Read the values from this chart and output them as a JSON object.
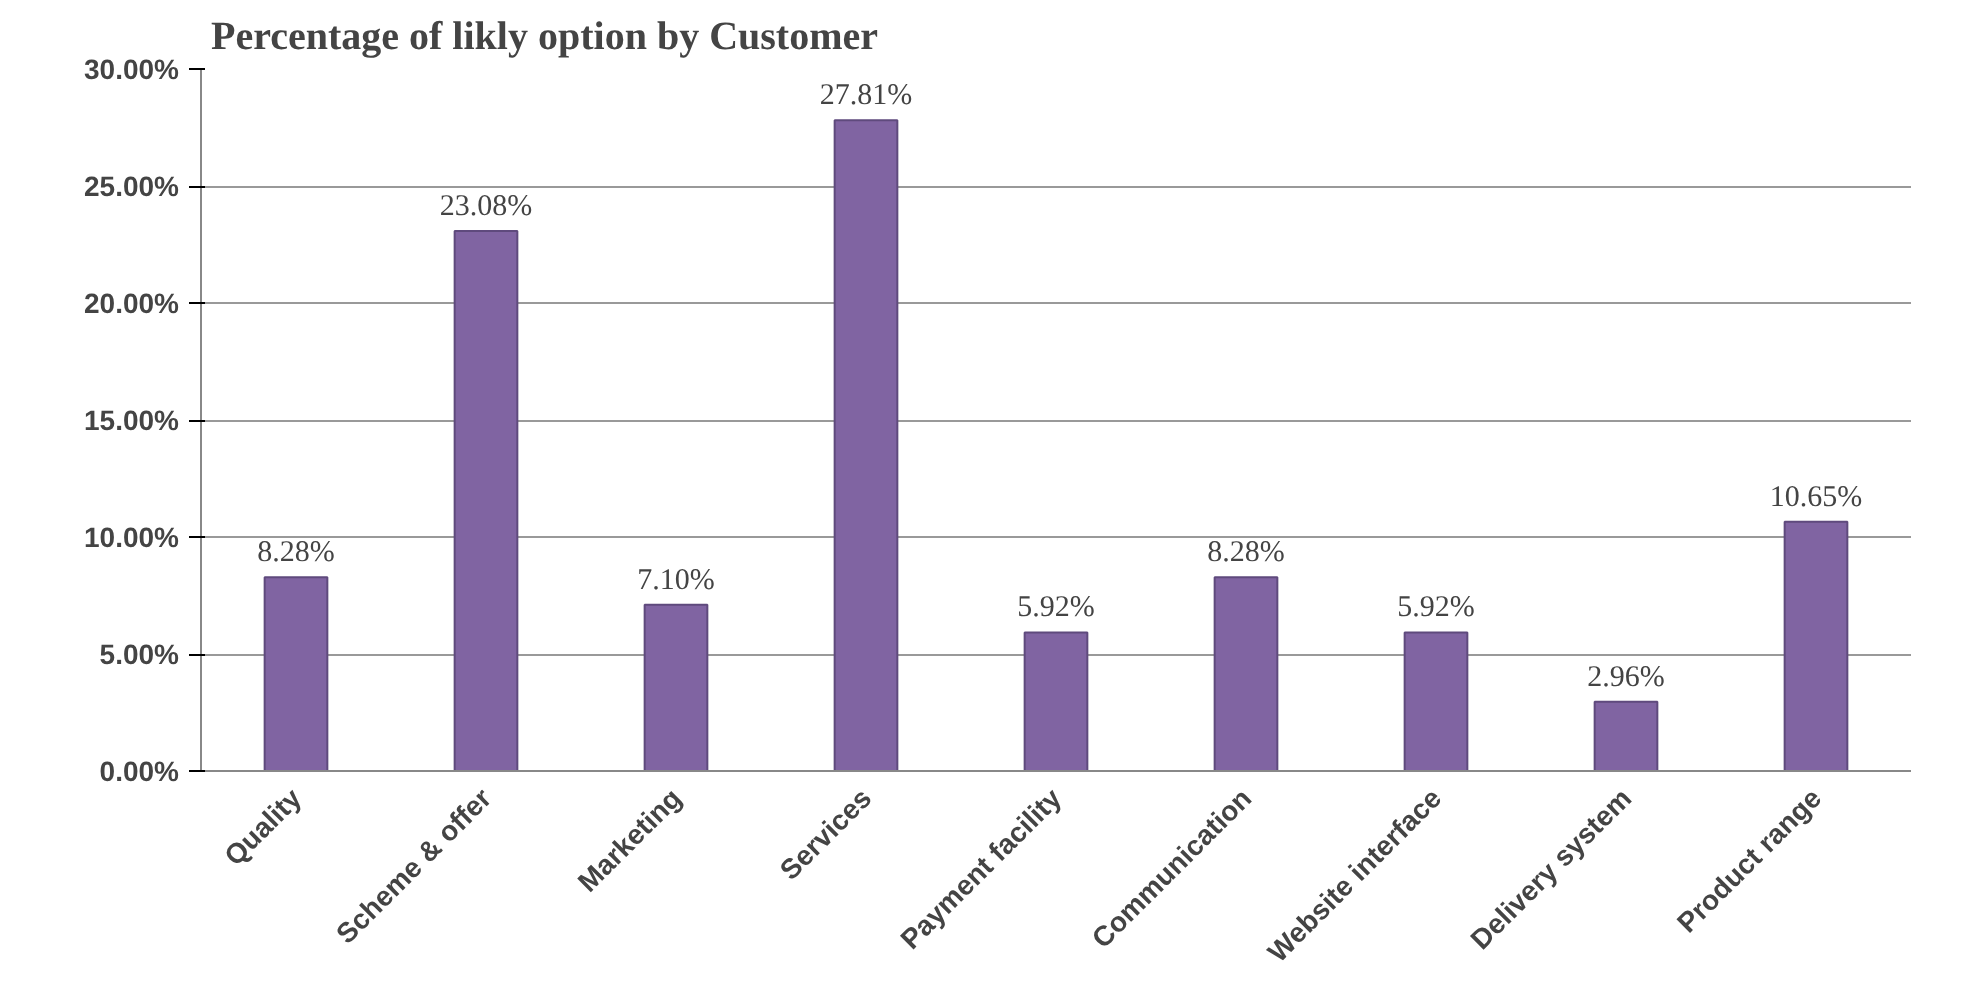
{
  "chart_data": {
    "type": "bar",
    "title": "Percentage of likly option by Customer",
    "categories": [
      "Quality",
      "Scheme & offer",
      "Marketing",
      "Services",
      "Payment facility",
      "Communication",
      "Website interface",
      "Delivery system",
      "Product range"
    ],
    "values": [
      8.28,
      23.08,
      7.1,
      27.81,
      5.92,
      8.28,
      5.92,
      2.96,
      10.65
    ],
    "value_labels": [
      "8.28%",
      "23.08%",
      "7.10%",
      "27.81%",
      "5.92%",
      "8.28%",
      "5.92%",
      "2.96%",
      "10.65%"
    ],
    "color": "#8064a2",
    "ylim": [
      0,
      30
    ],
    "yticks": [
      {
        "value": 0,
        "label": "0.00%"
      },
      {
        "value": 5,
        "label": "5.00%"
      },
      {
        "value": 10,
        "label": "10.00%"
      },
      {
        "value": 15,
        "label": "15.00%"
      },
      {
        "value": 20,
        "label": "20.00%"
      },
      {
        "value": 25,
        "label": "25.00%"
      },
      {
        "value": 30,
        "label": "30.00%"
      }
    ],
    "grid": "y"
  }
}
